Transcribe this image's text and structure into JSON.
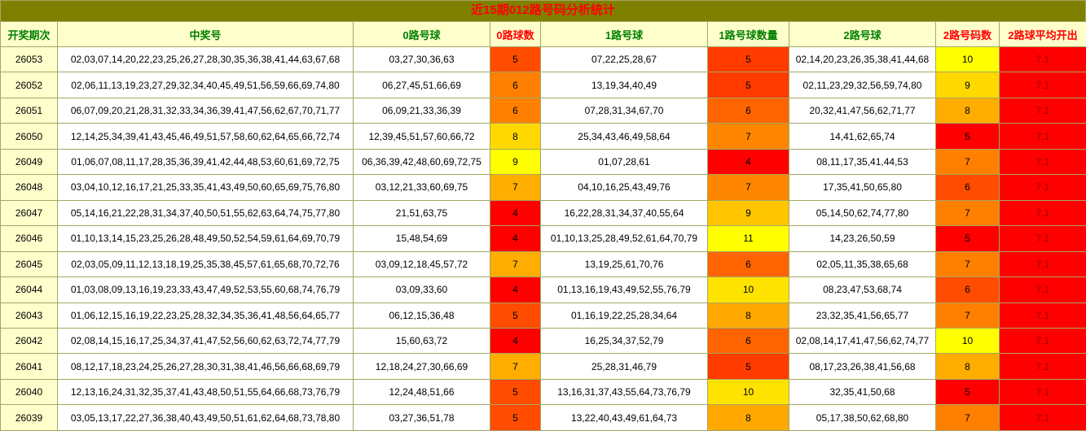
{
  "title": "近15期012路号码分析统计",
  "colors": {
    "title_bg": "#808000",
    "title_text": "#FF0000",
    "header_bg": "#FFFFCC",
    "header_green": "#008000",
    "header_red": "#FF0000",
    "period_bg": "#FFFFCC",
    "border": "#A6A663",
    "avg_bg": "#FF0000",
    "avg_text": "#990000"
  },
  "heat": {
    "min_color": "#FF0000",
    "max_color": "#FFFF00",
    "gamma": 0.75
  },
  "columns": [
    {
      "key": "period",
      "label": "开奖期次",
      "label_color": "green"
    },
    {
      "key": "winning",
      "label": "中奖号",
      "label_color": "green"
    },
    {
      "key": "road0",
      "label": "0路号球",
      "label_color": "green"
    },
    {
      "key": "road0_count",
      "label": "0路球数",
      "label_color": "red",
      "heat": true
    },
    {
      "key": "road1",
      "label": "1路号球",
      "label_color": "green"
    },
    {
      "key": "road1_count",
      "label": "1路号球数量",
      "label_color": "green",
      "heat": true
    },
    {
      "key": "road2",
      "label": "2路号球",
      "label_color": "green"
    },
    {
      "key": "road2_count",
      "label": "2路号码数",
      "label_color": "red",
      "heat": true
    },
    {
      "key": "avg",
      "label": "2路球平均开出",
      "label_color": "red",
      "avg": true
    }
  ],
  "rows": [
    {
      "period": "26053",
      "winning": "02,03,07,14,20,22,23,25,26,27,28,30,35,36,38,41,44,63,67,68",
      "road0": "03,27,30,36,63",
      "road0_count": 5,
      "road1": "07,22,25,28,67",
      "road1_count": 5,
      "road2": "02,14,20,23,26,35,38,41,44,68",
      "road2_count": 10,
      "avg": "7.1"
    },
    {
      "period": "26052",
      "winning": "02,06,11,13,19,23,27,29,32,34,40,45,49,51,56,59,66,69,74,80",
      "road0": "06,27,45,51,66,69",
      "road0_count": 6,
      "road1": "13,19,34,40,49",
      "road1_count": 5,
      "road2": "02,11,23,29,32,56,59,74,80",
      "road2_count": 9,
      "avg": "7.1"
    },
    {
      "period": "26051",
      "winning": "06,07,09,20,21,28,31,32,33,34,36,39,41,47,56,62,67,70,71,77",
      "road0": "06,09,21,33,36,39",
      "road0_count": 6,
      "road1": "07,28,31,34,67,70",
      "road1_count": 6,
      "road2": "20,32,41,47,56,62,71,77",
      "road2_count": 8,
      "avg": "7.1"
    },
    {
      "period": "26050",
      "winning": "12,14,25,34,39,41,43,45,46,49,51,57,58,60,62,64,65,66,72,74",
      "road0": "12,39,45,51,57,60,66,72",
      "road0_count": 8,
      "road1": "25,34,43,46,49,58,64",
      "road1_count": 7,
      "road2": "14,41,62,65,74",
      "road2_count": 5,
      "avg": "7.1"
    },
    {
      "period": "26049",
      "winning": "01,06,07,08,11,17,28,35,36,39,41,42,44,48,53,60,61,69,72,75",
      "road0": "06,36,39,42,48,60,69,72,75",
      "road0_count": 9,
      "road1": "01,07,28,61",
      "road1_count": 4,
      "road2": "08,11,17,35,41,44,53",
      "road2_count": 7,
      "avg": "7.1"
    },
    {
      "period": "26048",
      "winning": "03,04,10,12,16,17,21,25,33,35,41,43,49,50,60,65,69,75,76,80",
      "road0": "03,12,21,33,60,69,75",
      "road0_count": 7,
      "road1": "04,10,16,25,43,49,76",
      "road1_count": 7,
      "road2": "17,35,41,50,65,80",
      "road2_count": 6,
      "avg": "7.1"
    },
    {
      "period": "26047",
      "winning": "05,14,16,21,22,28,31,34,37,40,50,51,55,62,63,64,74,75,77,80",
      "road0": "21,51,63,75",
      "road0_count": 4,
      "road1": "16,22,28,31,34,37,40,55,64",
      "road1_count": 9,
      "road2": "05,14,50,62,74,77,80",
      "road2_count": 7,
      "avg": "7.1"
    },
    {
      "period": "26046",
      "winning": "01,10,13,14,15,23,25,26,28,48,49,50,52,54,59,61,64,69,70,79",
      "road0": "15,48,54,69",
      "road0_count": 4,
      "road1": "01,10,13,25,28,49,52,61,64,70,79",
      "road1_count": 11,
      "road2": "14,23,26,50,59",
      "road2_count": 5,
      "avg": "7.1"
    },
    {
      "period": "26045",
      "winning": "02,03,05,09,11,12,13,18,19,25,35,38,45,57,61,65,68,70,72,76",
      "road0": "03,09,12,18,45,57,72",
      "road0_count": 7,
      "road1": "13,19,25,61,70,76",
      "road1_count": 6,
      "road2": "02,05,11,35,38,65,68",
      "road2_count": 7,
      "avg": "7.1"
    },
    {
      "period": "26044",
      "winning": "01,03,08,09,13,16,19,23,33,43,47,49,52,53,55,60,68,74,76,79",
      "road0": "03,09,33,60",
      "road0_count": 4,
      "road1": "01,13,16,19,43,49,52,55,76,79",
      "road1_count": 10,
      "road2": "08,23,47,53,68,74",
      "road2_count": 6,
      "avg": "7.1"
    },
    {
      "period": "26043",
      "winning": "01,06,12,15,16,19,22,23,25,28,32,34,35,36,41,48,56,64,65,77",
      "road0": "06,12,15,36,48",
      "road0_count": 5,
      "road1": "01,16,19,22,25,28,34,64",
      "road1_count": 8,
      "road2": "23,32,35,41,56,65,77",
      "road2_count": 7,
      "avg": "7.1"
    },
    {
      "period": "26042",
      "winning": "02,08,14,15,16,17,25,34,37,41,47,52,56,60,62,63,72,74,77,79",
      "road0": "15,60,63,72",
      "road0_count": 4,
      "road1": "16,25,34,37,52,79",
      "road1_count": 6,
      "road2": "02,08,14,17,41,47,56,62,74,77",
      "road2_count": 10,
      "avg": "7.1"
    },
    {
      "period": "26041",
      "winning": "08,12,17,18,23,24,25,26,27,28,30,31,38,41,46,56,66,68,69,79",
      "road0": "12,18,24,27,30,66,69",
      "road0_count": 7,
      "road1": "25,28,31,46,79",
      "road1_count": 5,
      "road2": "08,17,23,26,38,41,56,68",
      "road2_count": 8,
      "avg": "7.1"
    },
    {
      "period": "26040",
      "winning": "12,13,16,24,31,32,35,37,41,43,48,50,51,55,64,66,68,73,76,79",
      "road0": "12,24,48,51,66",
      "road0_count": 5,
      "road1": "13,16,31,37,43,55,64,73,76,79",
      "road1_count": 10,
      "road2": "32,35,41,50,68",
      "road2_count": 5,
      "avg": "7.1"
    },
    {
      "period": "26039",
      "winning": "03,05,13,17,22,27,36,38,40,43,49,50,51,61,62,64,68,73,78,80",
      "road0": "03,27,36,51,78",
      "road0_count": 5,
      "road1": "13,22,40,43,49,61,64,73",
      "road1_count": 8,
      "road2": "05,17,38,50,62,68,80",
      "road2_count": 7,
      "avg": "7.1"
    }
  ]
}
